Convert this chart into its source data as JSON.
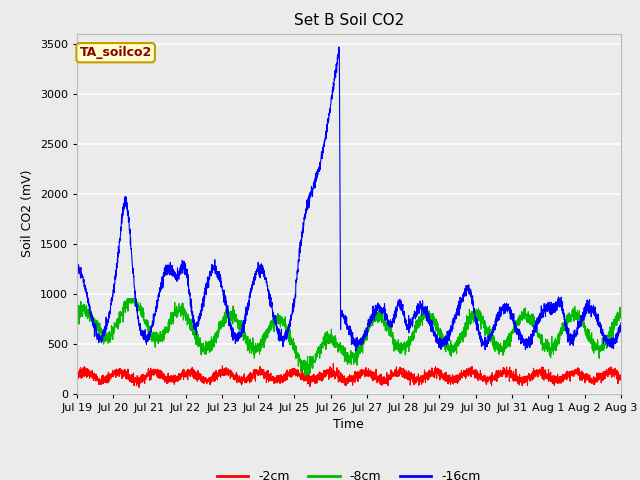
{
  "title": "Set B Soil CO2",
  "ylabel": "Soil CO2 (mV)",
  "xlabel": "Time",
  "annotation": "TA_soilco2",
  "annotation_color": "#8B0000",
  "annotation_bg": "#FFFFCC",
  "annotation_border": "#CC9900",
  "legend_labels": [
    "-2cm",
    "-8cm",
    "-16cm"
  ],
  "line_colors": [
    "#FF0000",
    "#00BB00",
    "#0000FF"
  ],
  "ylim": [
    0,
    3600
  ],
  "yticks": [
    0,
    500,
    1000,
    1500,
    2000,
    2500,
    3000,
    3500
  ],
  "plot_bg": "#EBEBEB",
  "fig_bg": "#EBEBEB",
  "grid_color": "#FFFFFF",
  "xtick_labels": [
    "Jul 19",
    "Jul 20",
    "Jul 21",
    "Jul 22",
    "Jul 23",
    "Jul 24",
    "Jul 25",
    "Jul 26",
    "Jul 27",
    "Jul 28",
    "Jul 29",
    "Jul 30",
    "Jul 31",
    "Aug 1",
    "Aug 2",
    "Aug 3"
  ],
  "num_points": 3360,
  "n_days": 15.5
}
